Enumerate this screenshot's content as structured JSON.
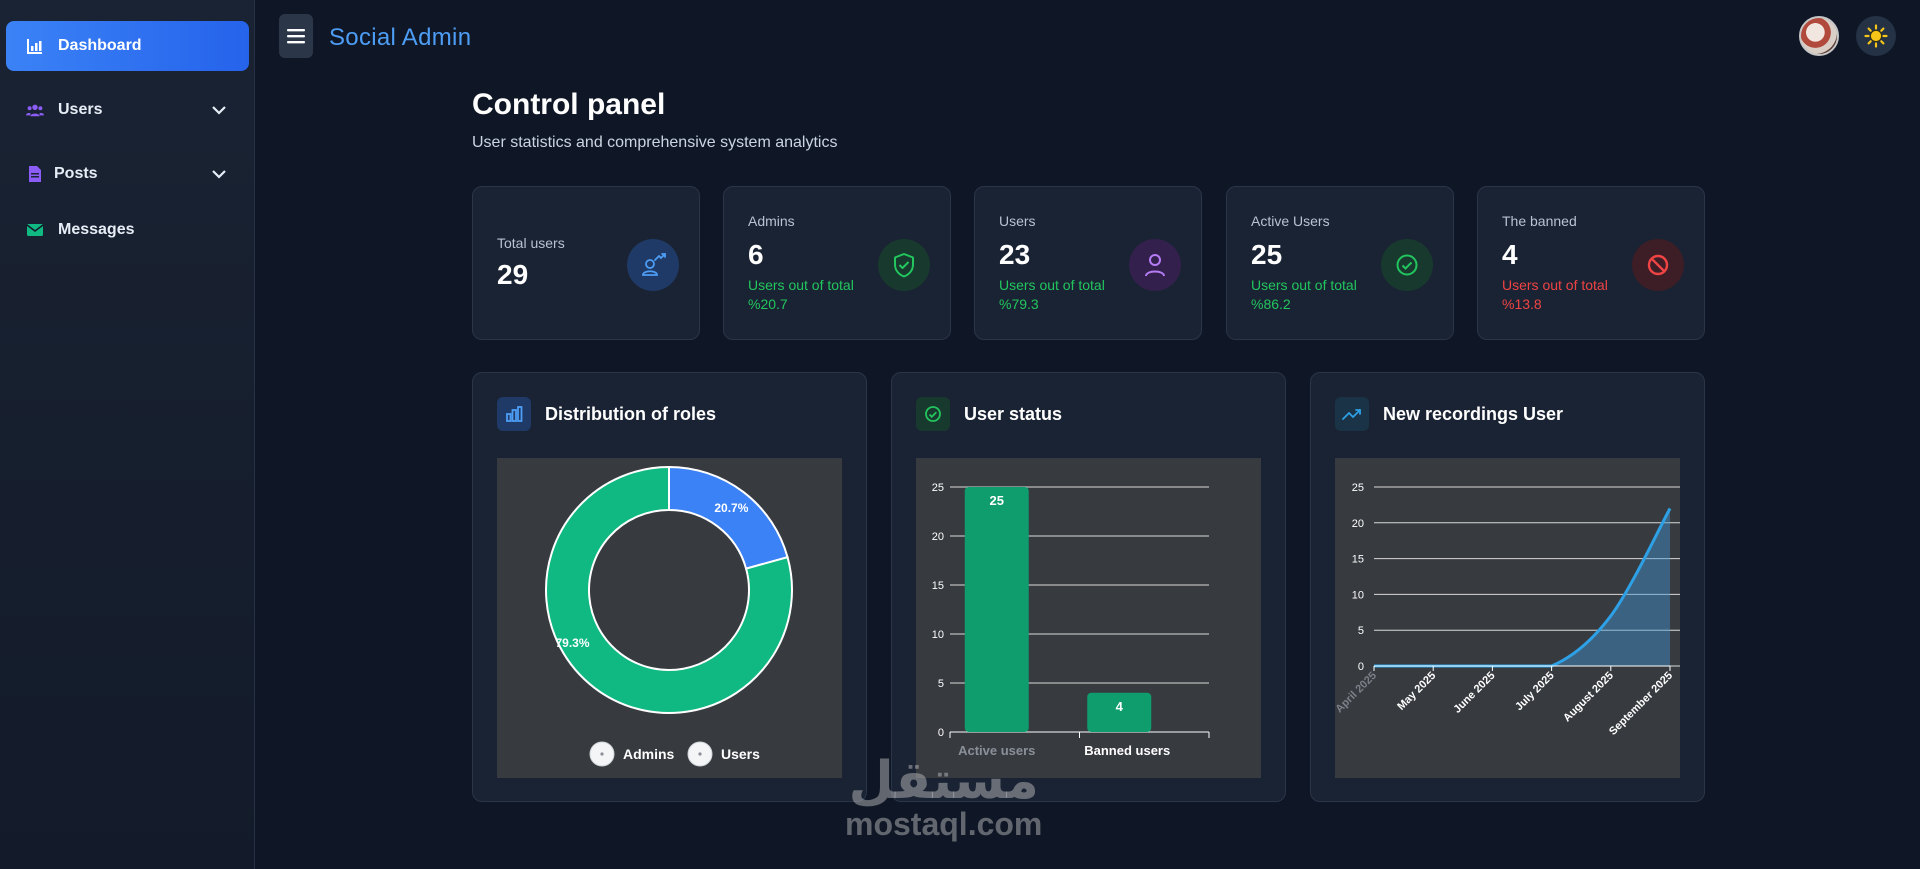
{
  "sidebar": {
    "items": [
      {
        "label": "Dashboard",
        "icon": "chart-icon",
        "active": true
      },
      {
        "label": "Users",
        "icon": "users-icon",
        "expandable": true
      },
      {
        "label": "Posts",
        "icon": "file-icon",
        "expandable": true
      },
      {
        "label": "Messages",
        "icon": "envelope-icon"
      }
    ]
  },
  "header": {
    "brand": "Social Admin",
    "menu_icon": "hamburger-icon",
    "theme_icon": "sun-icon"
  },
  "page": {
    "title": "Control panel",
    "subtitle": "User statistics and comprehensive system analytics"
  },
  "stats": [
    {
      "label": "Total users",
      "value": "29",
      "sub": "",
      "icon": "user-chart-icon",
      "color": "#3b82f6"
    },
    {
      "label": "Admins",
      "value": "6",
      "sub": "Users out of total %20.7",
      "icon": "shield-check-icon",
      "color": "#22c55e"
    },
    {
      "label": "Users",
      "value": "23",
      "sub": "Users out of total %79.3",
      "icon": "user-icon",
      "color": "#a855f7"
    },
    {
      "label": "Active Users",
      "value": "25",
      "sub": "Users out of total %86.2",
      "icon": "check-circle-icon",
      "color": "#22c55e"
    },
    {
      "label": "The banned",
      "value": "4",
      "sub": "Users out of total %13.8",
      "icon": "ban-icon",
      "color": "#ef4444"
    }
  ],
  "charts": {
    "roles": {
      "title": "Distribution of roles",
      "icon": "bar-chart-icon"
    },
    "status": {
      "title": "User status",
      "icon": "check-circle-icon"
    },
    "recordings": {
      "title": "New recordings User",
      "icon": "trending-up-icon"
    }
  },
  "chart_data": [
    {
      "type": "pie",
      "title": "Distribution of roles",
      "categories": [
        "Admins",
        "Users"
      ],
      "values": [
        20.7,
        79.3
      ],
      "labels": [
        "20.7%",
        "79.3%"
      ],
      "colors": [
        "#3b82f6",
        "#10b981"
      ],
      "legend": "bottom"
    },
    {
      "type": "bar",
      "title": "User status",
      "categories": [
        "Active users",
        "Banned users"
      ],
      "values": [
        25,
        4
      ],
      "ylim": [
        0,
        25
      ],
      "yticks": [
        0,
        5,
        10,
        15,
        20,
        25
      ],
      "colors": [
        "#0f9d6e",
        "#0f9d6e"
      ],
      "grid": true
    },
    {
      "type": "area",
      "title": "New recordings User",
      "categories": [
        "April 2025",
        "May 2025",
        "June 2025",
        "July 2025",
        "August 2025",
        "September 2025"
      ],
      "values": [
        0,
        0,
        0,
        0,
        7,
        22
      ],
      "ylim": [
        0,
        25
      ],
      "yticks": [
        0,
        5,
        10,
        15,
        20,
        25
      ],
      "color": "#2ea0e6",
      "grid": true
    }
  ],
  "watermark": {
    "arabic": "مستقل",
    "latin": "mostaql.com"
  }
}
